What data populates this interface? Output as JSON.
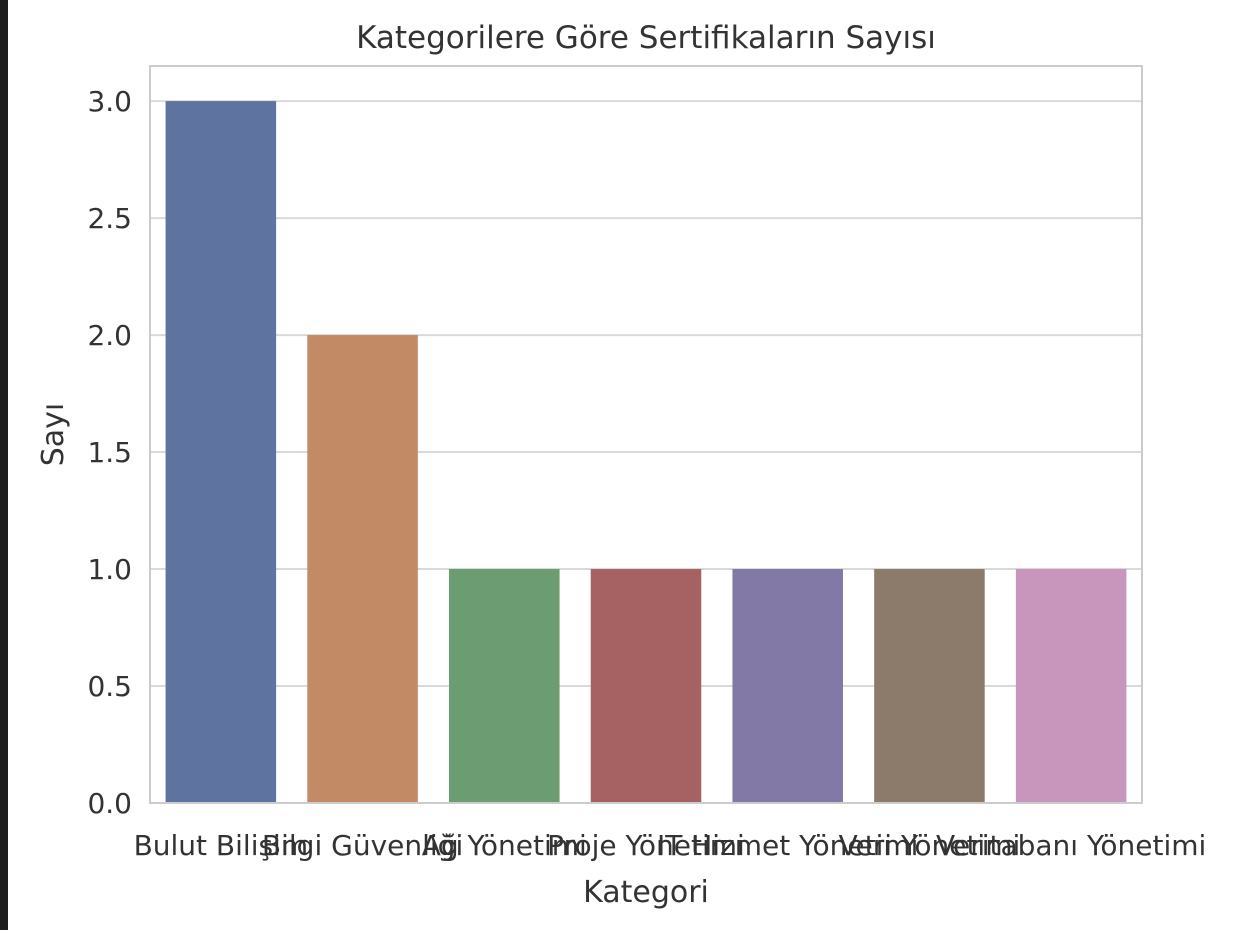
{
  "chart_data": {
    "type": "bar",
    "title": "Kategorilere Göre Sertifikaların Sayısı",
    "xlabel": "Kategori",
    "ylabel": "Sayı",
    "ylim": [
      0,
      3.15
    ],
    "yticks": [
      "0.0",
      "0.5",
      "1.0",
      "1.5",
      "2.0",
      "2.5",
      "3.0"
    ],
    "ytick_values": [
      0,
      0.5,
      1.0,
      1.5,
      2.0,
      2.5,
      3.0
    ],
    "grid": true,
    "categories": [
      "Bulut Bilişim",
      "Bilgi Güvenliği",
      "Ağ Yönetimi",
      "Proje Yönetimi",
      "IT Hizmet Yönetimi",
      "Veri Yönetimi",
      "Veritabanı Yönetimi"
    ],
    "values": [
      3,
      2,
      1,
      1,
      1,
      1,
      1
    ],
    "colors": [
      "#5f73a1",
      "#c28a65",
      "#6c9d72",
      "#a66262",
      "#8279a6",
      "#8c7b6b",
      "#c896bd"
    ]
  }
}
